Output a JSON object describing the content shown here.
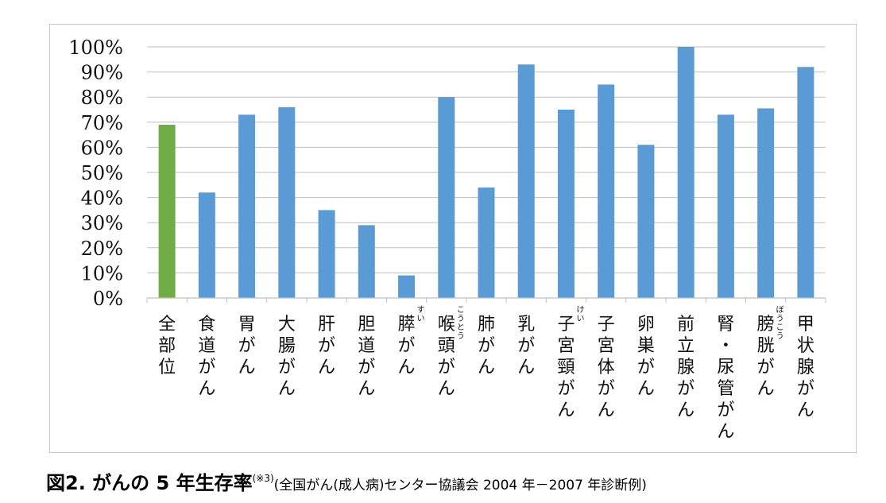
{
  "chart_data": {
    "type": "bar",
    "categories": [
      "全部位",
      "食道がん",
      "胃がん",
      "大腸がん",
      "肝がん",
      "胆道がん",
      "膵がん",
      "喉頭がん",
      "肺がん",
      "乳がん",
      "子宮頸がん",
      "子宮体がん",
      "卵巣がん",
      "前立腺がん",
      "腎・尿管がん",
      "膀胱がん",
      "甲状腺がん"
    ],
    "ruby": [
      "",
      "",
      "",
      "",
      "",
      "",
      "すい",
      "こうとう",
      "",
      "",
      "けい",
      "",
      "",
      "",
      "",
      "ぼうこう",
      ""
    ],
    "values": [
      69,
      42,
      73,
      76,
      35,
      29,
      9,
      80,
      44,
      93,
      75,
      85,
      61,
      100,
      73,
      75.5,
      92
    ],
    "colors": [
      "#70ad47",
      "#5b9bd5",
      "#5b9bd5",
      "#5b9bd5",
      "#5b9bd5",
      "#5b9bd5",
      "#5b9bd5",
      "#5b9bd5",
      "#5b9bd5",
      "#5b9bd5",
      "#5b9bd5",
      "#5b9bd5",
      "#5b9bd5",
      "#5b9bd5",
      "#5b9bd5",
      "#5b9bd5",
      "#5b9bd5"
    ],
    "ylim": [
      0,
      100
    ],
    "yticks": [
      0,
      10,
      20,
      30,
      40,
      50,
      60,
      70,
      80,
      90,
      100
    ],
    "ytick_labels": [
      "0%",
      "10%",
      "20%",
      "30%",
      "40%",
      "50%",
      "60%",
      "70%",
      "80%",
      "90%",
      "100%"
    ],
    "grid": true,
    "gridline_color": "#bfbfbf"
  },
  "caption": {
    "figure": "図2. がんの 5 年生存率",
    "ref": "(※3)",
    "source": "(全国がん(成人病)センター協議会 2004 年－2007 年診断例)"
  }
}
